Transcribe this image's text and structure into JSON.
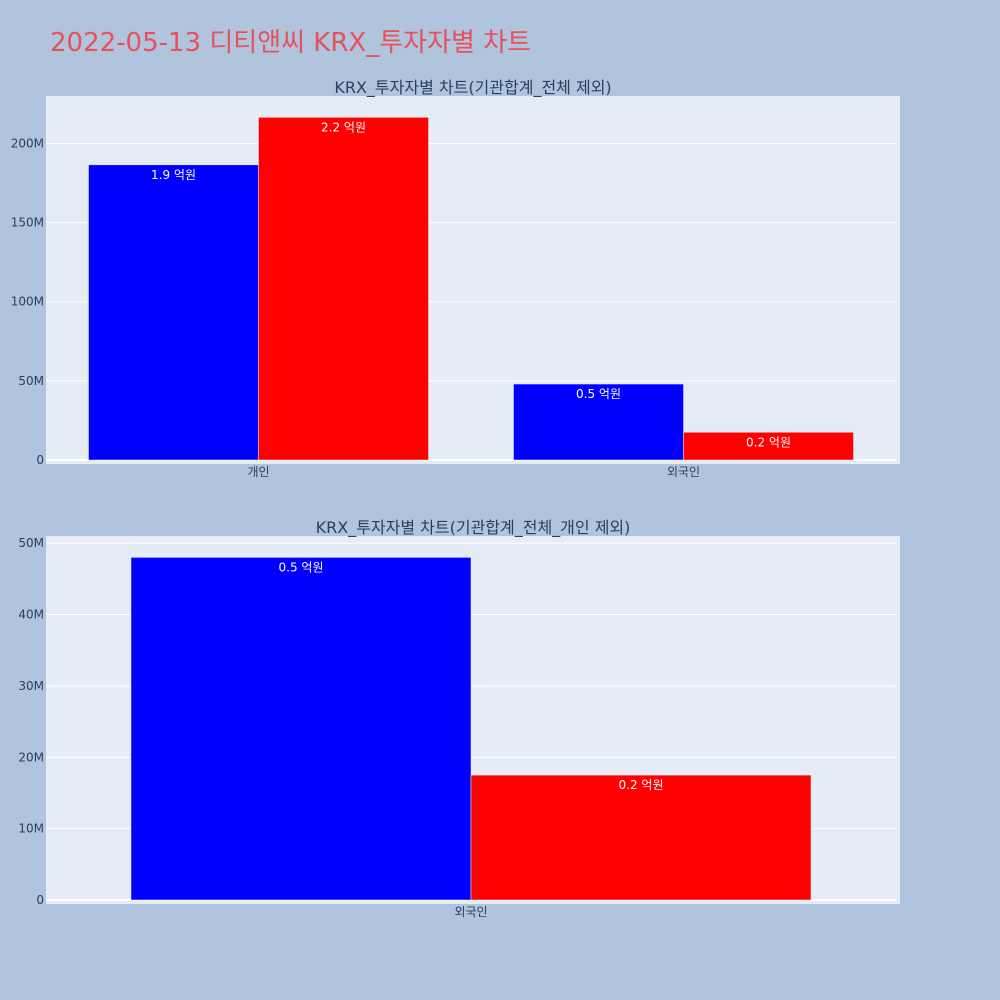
{
  "page": {
    "title": "2022-05-13 디티앤씨 KRX_투자자별 차트"
  },
  "colors": {
    "background": "#b0c4de",
    "plot_background": "#e5ecf6",
    "title": "#e8505b",
    "series_blue": "#0000ff",
    "series_red": "#ff0000"
  },
  "chart_data": [
    {
      "type": "bar",
      "title": "KRX_투자자별 차트(기관합계_전체 제외)",
      "categories": [
        "개인",
        "외국인"
      ],
      "series": [
        {
          "color": "#0000ff",
          "values": [
            186500000,
            48000000
          ],
          "labels": [
            "1.9 억원",
            "0.5 억원"
          ]
        },
        {
          "color": "#ff0000",
          "values": [
            216500000,
            17500000
          ],
          "labels": [
            "2.2 억원",
            "0.2 억원"
          ]
        }
      ],
      "ylim": [
        0,
        230000000
      ],
      "yticks": [
        0,
        50000000,
        100000000,
        150000000,
        200000000
      ],
      "ytick_labels": [
        "0",
        "50M",
        "100M",
        "150M",
        "200M"
      ],
      "grid": true
    },
    {
      "type": "bar",
      "title": "KRX_투자자별 차트(기관합계_전체_개인 제외)",
      "categories": [
        "외국인"
      ],
      "series": [
        {
          "color": "#0000ff",
          "values": [
            48000000
          ],
          "labels": [
            "0.5 억원"
          ]
        },
        {
          "color": "#ff0000",
          "values": [
            17500000
          ],
          "labels": [
            "0.2 억원"
          ]
        }
      ],
      "ylim": [
        0,
        51000000
      ],
      "yticks": [
        0,
        10000000,
        20000000,
        30000000,
        40000000,
        50000000
      ],
      "ytick_labels": [
        "0",
        "10M",
        "20M",
        "30M",
        "40M",
        "50M"
      ],
      "grid": true
    }
  ]
}
